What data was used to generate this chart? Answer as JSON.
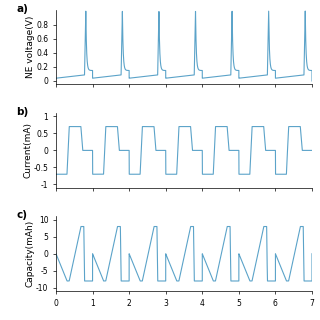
{
  "xlim": [
    0,
    7
  ],
  "panel_a": {
    "ylabel": "NE voltage(V)",
    "ylim": [
      -0.05,
      1.02
    ],
    "yticks": [
      0,
      0.2,
      0.4,
      0.6,
      0.8
    ],
    "yticklabels": [
      "0",
      "0.2",
      "0.4",
      "0.6",
      "0.8"
    ]
  },
  "panel_b": {
    "ylabel": "Current(mA)",
    "ylim": [
      -1.1,
      1.1
    ],
    "yticks": [
      -1,
      -0.5,
      0,
      0.5,
      1
    ],
    "yticklabels": [
      "-1",
      "-0.5",
      "0",
      "0.5",
      "1"
    ]
  },
  "panel_c": {
    "ylabel": "Capacity(mAh)",
    "ylim": [
      -11,
      11
    ],
    "yticks": [
      -10,
      -5,
      0,
      5,
      10
    ],
    "yticklabels": [
      "-10",
      "-5",
      "0",
      "5",
      "10"
    ]
  },
  "xticks": [
    0,
    1,
    2,
    3,
    4,
    5,
    6,
    7
  ],
  "xticklabels": [
    "0",
    "1",
    "2",
    "3",
    "4",
    "5",
    "6",
    "7"
  ],
  "line_color": "#5ba3c9",
  "background_color": "#ffffff",
  "n_cycles": 6,
  "cycle_period": 1.0,
  "line_width": 0.8,
  "label_fontsize": 6.5,
  "tick_fontsize": 5.5,
  "panel_labels": [
    "a)",
    "b)",
    "c)"
  ]
}
